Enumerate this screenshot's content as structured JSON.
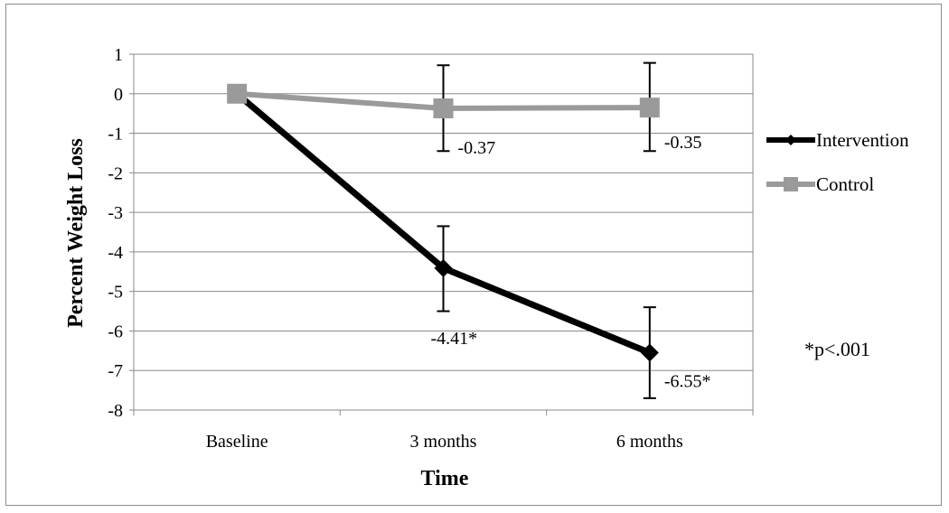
{
  "chart_data": {
    "type": "line",
    "title": "",
    "xlabel": "Time",
    "ylabel": "Percent Weight Loss",
    "categories": [
      "Baseline",
      "3 months",
      "6 months"
    ],
    "ylim": [
      -8,
      1
    ],
    "yticks": [
      1,
      0,
      -1,
      -2,
      -3,
      -4,
      -5,
      -6,
      -7,
      -8
    ],
    "grid": true,
    "legend_position": "right",
    "series": [
      {
        "name": "Intervention",
        "values": [
          0,
          -4.41,
          -6.55
        ],
        "error_low": [
          null,
          -5.5,
          -7.7
        ],
        "error_high": [
          null,
          -3.35,
          -5.4
        ],
        "labels": [
          "",
          "-4.41*",
          "-6.55*"
        ],
        "color": "#000000",
        "marker": "diamond"
      },
      {
        "name": "Control",
        "values": [
          0,
          -0.37,
          -0.35
        ],
        "error_low": [
          null,
          -1.45,
          -1.45
        ],
        "error_high": [
          null,
          0.72,
          0.78
        ],
        "labels": [
          "",
          "-0.37",
          "-0.35"
        ],
        "color": "#9a9a9a",
        "marker": "square"
      }
    ],
    "annotation": "*p<.001"
  }
}
